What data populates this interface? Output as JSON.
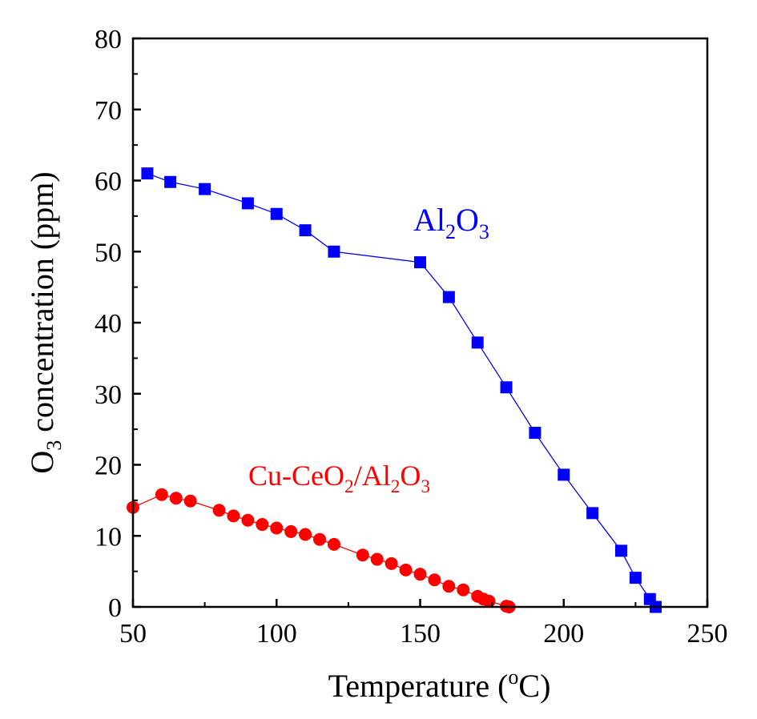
{
  "chart_data": {
    "type": "line",
    "xlabel": {
      "main": "Temperature (",
      "sup": "o",
      "after": "C)"
    },
    "ylabel": {
      "prefix": "O",
      "sub": "3",
      "suffix": " concentration (ppm)"
    },
    "xlim": [
      50,
      250
    ],
    "ylim": [
      0,
      80
    ],
    "xticks": [
      50,
      100,
      150,
      200,
      250
    ],
    "yticks": [
      0,
      10,
      20,
      30,
      40,
      50,
      60,
      70,
      80
    ],
    "grid": false,
    "series": [
      {
        "label_parts": [
          {
            "t": "Al",
            "s": false
          },
          {
            "t": "2",
            "s": true
          },
          {
            "t": "O",
            "s": false
          },
          {
            "t": "3",
            "s": true
          }
        ],
        "color": "#0000ff",
        "marker": "square",
        "points": [
          [
            55,
            61.0
          ],
          [
            63,
            59.8
          ],
          [
            75,
            58.8
          ],
          [
            90,
            56.8
          ],
          [
            100,
            55.3
          ],
          [
            110,
            53.0
          ],
          [
            120,
            50.0
          ],
          [
            150,
            48.5
          ],
          [
            160,
            43.6
          ],
          [
            170,
            37.2
          ],
          [
            180,
            30.9
          ],
          [
            190,
            24.5
          ],
          [
            200,
            18.6
          ],
          [
            210,
            13.2
          ],
          [
            220,
            7.9
          ],
          [
            225,
            4.1
          ],
          [
            230,
            1.1
          ],
          [
            232,
            0.0
          ]
        ]
      },
      {
        "label_parts": [
          {
            "t": "Cu-CeO",
            "s": false
          },
          {
            "t": "2",
            "s": true
          },
          {
            "t": "/Al",
            "s": false
          },
          {
            "t": "2",
            "s": true
          },
          {
            "t": "O",
            "s": false
          },
          {
            "t": "3",
            "s": true
          }
        ],
        "color": "#ff0000",
        "marker": "circle",
        "points": [
          [
            50,
            14.0
          ],
          [
            60,
            15.8
          ],
          [
            65,
            15.3
          ],
          [
            70,
            14.9
          ],
          [
            80,
            13.6
          ],
          [
            85,
            12.8
          ],
          [
            90,
            12.2
          ],
          [
            95,
            11.6
          ],
          [
            100,
            11.1
          ],
          [
            105,
            10.6
          ],
          [
            110,
            10.2
          ],
          [
            115,
            9.5
          ],
          [
            120,
            8.8
          ],
          [
            130,
            7.3
          ],
          [
            135,
            6.7
          ],
          [
            140,
            6.1
          ],
          [
            145,
            5.2
          ],
          [
            150,
            4.6
          ],
          [
            155,
            3.8
          ],
          [
            160,
            2.9
          ],
          [
            165,
            2.4
          ],
          [
            170,
            1.5
          ],
          [
            172,
            1.1
          ],
          [
            174,
            0.8
          ],
          [
            180,
            0.1
          ],
          [
            181,
            0.0
          ]
        ]
      }
    ]
  }
}
